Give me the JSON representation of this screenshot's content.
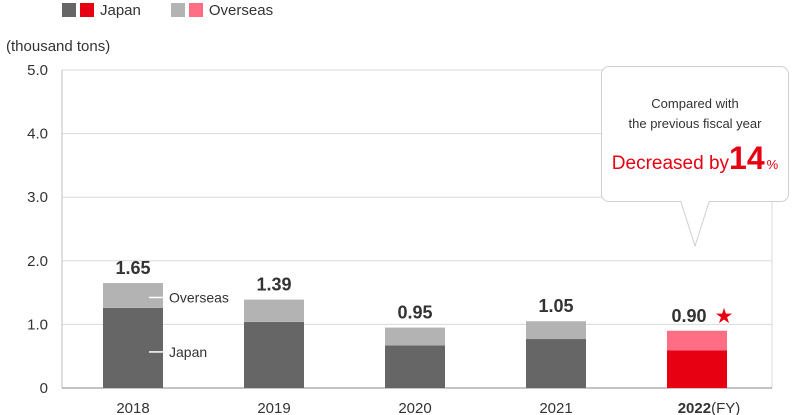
{
  "legend": {
    "japan_label": "Japan",
    "overseas_label": "Overseas"
  },
  "unit_label": "(thousand tons)",
  "callout": {
    "line1": "Compared with",
    "line2": "the previous fiscal year",
    "decrease_prefix": "Decreased by",
    "decrease_value": "14",
    "decrease_unit": "%"
  },
  "annotations": {
    "overseas": "Overseas",
    "japan": "Japan"
  },
  "fy_suffix": "(FY)",
  "star": "★",
  "colors": {
    "japan": "#666666",
    "overseas": "#b3b3b3",
    "japan_highlight": "#e60012",
    "overseas_highlight": "#ff6e85",
    "grid": "#d9d9d9",
    "text": "#333333",
    "accent": "#e60012"
  },
  "chart_data": {
    "type": "bar",
    "stacked": true,
    "categories": [
      "2018",
      "2019",
      "2020",
      "2021",
      "2022"
    ],
    "series": [
      {
        "name": "Japan",
        "values": [
          1.26,
          1.04,
          0.67,
          0.77,
          0.59
        ]
      },
      {
        "name": "Overseas",
        "values": [
          0.39,
          0.35,
          0.28,
          0.28,
          0.31
        ]
      }
    ],
    "totals": [
      "1.65",
      "1.39",
      "0.95",
      "1.05",
      "0.90"
    ],
    "y_ticks": [
      "0",
      "1.0",
      "2.0",
      "3.0",
      "4.0",
      "5.0"
    ],
    "ylim": [
      0,
      5
    ],
    "ylabel": "(thousand tons)",
    "highlight_index": 4,
    "grid": true,
    "legend_position": "top-left"
  }
}
